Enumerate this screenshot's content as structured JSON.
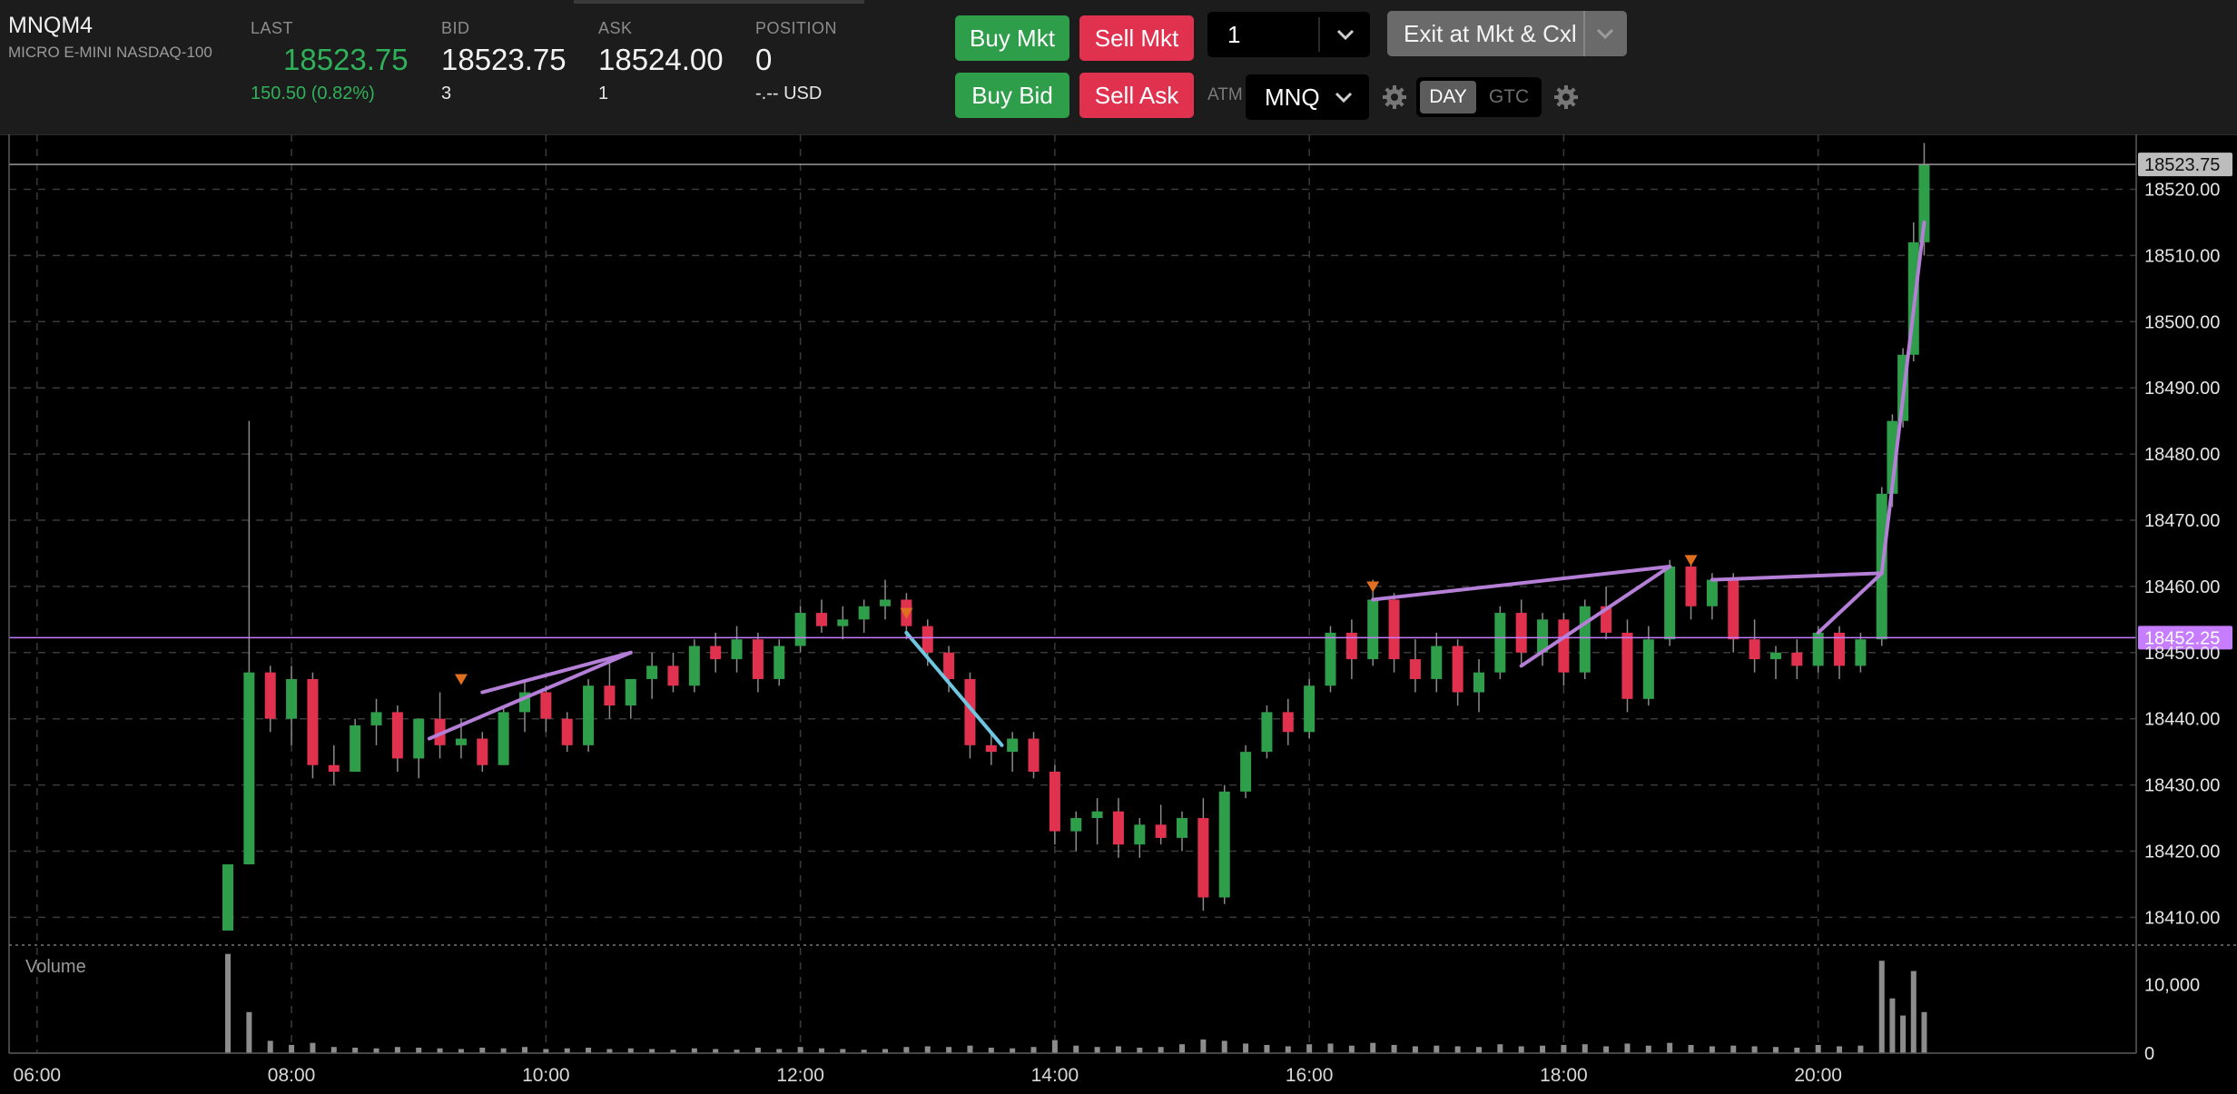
{
  "instrument": {
    "symbol": "MNQM4",
    "description": "MICRO E-MINI NASDAQ-100"
  },
  "quote": {
    "last_label": "LAST",
    "last": "18523.75",
    "change": "150.50 (0.82%)",
    "bid_label": "BID",
    "bid": "18523.75",
    "bid_size": "3",
    "ask_label": "ASK",
    "ask": "18524.00",
    "ask_size": "1",
    "position_label": "POSITION",
    "position": "0",
    "pnl": "-.-- USD"
  },
  "order_entry": {
    "buy_mkt": "Buy Mkt",
    "sell_mkt": "Sell Mkt",
    "buy_bid": "Buy Bid",
    "sell_ask": "Sell Ask",
    "quantity": "1",
    "exit_label": "Exit at Mkt & Cxl",
    "atm_label": "ATM",
    "atm_value": "MNQ",
    "tif_day": "DAY",
    "tif_gtc": "GTC",
    "tif_selected": "DAY"
  },
  "colors": {
    "up": "#2f9e4a",
    "down": "#e0324f",
    "last_price_line": "#9a9a9a",
    "reference_line": "#c77dff",
    "trend_lines": "#b57fd8",
    "trend_line_alt": "#6ec6e0",
    "marker_sell": "#e07020",
    "header_bg": "#1c1c1c"
  },
  "chart_data": {
    "type": "candlestick",
    "y_ticks": [
      "18520.00",
      "18510.00",
      "18500.00",
      "18490.00",
      "18480.00",
      "18470.00",
      "18460.00",
      "18450.00",
      "18440.00",
      "18430.00",
      "18420.00",
      "18410.00"
    ],
    "ylim": [
      18405.8,
      18528.3
    ],
    "x_ticks": [
      "06:00",
      "08:00",
      "10:00",
      "12:00",
      "14:00",
      "16:00",
      "18:00",
      "20:00"
    ],
    "x_range_hours": [
      5.78,
      22.5
    ],
    "last_price_tag": "18523.75",
    "reference_tag": "18452.25",
    "reference_price": 18452.25,
    "last_price": 18523.75,
    "volume_panel_label": "Volume",
    "volume_ticks": [
      "10,000",
      "0"
    ],
    "volume_max": 13000,
    "grid": "dashed",
    "candles": [
      {
        "t": "07:30",
        "o": 18408,
        "h": 18418,
        "l": 18408,
        "c": 18418,
        "v": 14500
      },
      {
        "t": "07:40",
        "o": 18418,
        "h": 18485,
        "l": 18418,
        "c": 18447,
        "v": 6000
      },
      {
        "t": "07:50",
        "o": 18447,
        "h": 18448,
        "l": 18438,
        "c": 18440,
        "v": 1800
      },
      {
        "t": "08:00",
        "o": 18440,
        "h": 18448,
        "l": 18436,
        "c": 18446,
        "v": 1200
      },
      {
        "t": "08:10",
        "o": 18446,
        "h": 18447,
        "l": 18431,
        "c": 18433,
        "v": 1500
      },
      {
        "t": "08:20",
        "o": 18433,
        "h": 18436,
        "l": 18430,
        "c": 18432,
        "v": 900
      },
      {
        "t": "08:30",
        "o": 18432,
        "h": 18440,
        "l": 18432,
        "c": 18439,
        "v": 800
      },
      {
        "t": "08:40",
        "o": 18439,
        "h": 18443,
        "l": 18436,
        "c": 18441,
        "v": 700
      },
      {
        "t": "08:50",
        "o": 18441,
        "h": 18442,
        "l": 18432,
        "c": 18434,
        "v": 900
      },
      {
        "t": "09:00",
        "o": 18434,
        "h": 18440,
        "l": 18431,
        "c": 18440,
        "v": 800
      },
      {
        "t": "09:10",
        "o": 18440,
        "h": 18444,
        "l": 18434,
        "c": 18436,
        "v": 700
      },
      {
        "t": "09:20",
        "o": 18436,
        "h": 18440,
        "l": 18434,
        "c": 18437,
        "v": 600
      },
      {
        "t": "09:30",
        "o": 18437,
        "h": 18438,
        "l": 18432,
        "c": 18433,
        "v": 800
      },
      {
        "t": "09:40",
        "o": 18433,
        "h": 18442,
        "l": 18433,
        "c": 18441,
        "v": 700
      },
      {
        "t": "09:50",
        "o": 18441,
        "h": 18446,
        "l": 18438,
        "c": 18444,
        "v": 900
      },
      {
        "t": "10:00",
        "o": 18444,
        "h": 18445,
        "l": 18438,
        "c": 18440,
        "v": 600
      },
      {
        "t": "10:10",
        "o": 18440,
        "h": 18441,
        "l": 18435,
        "c": 18436,
        "v": 700
      },
      {
        "t": "10:20",
        "o": 18436,
        "h": 18446,
        "l": 18435,
        "c": 18445,
        "v": 800
      },
      {
        "t": "10:30",
        "o": 18445,
        "h": 18449,
        "l": 18440,
        "c": 18442,
        "v": 600
      },
      {
        "t": "10:40",
        "o": 18442,
        "h": 18446,
        "l": 18440,
        "c": 18446,
        "v": 700
      },
      {
        "t": "10:50",
        "o": 18446,
        "h": 18450,
        "l": 18443,
        "c": 18448,
        "v": 600
      },
      {
        "t": "11:00",
        "o": 18448,
        "h": 18450,
        "l": 18444,
        "c": 18445,
        "v": 500
      },
      {
        "t": "11:10",
        "o": 18445,
        "h": 18452,
        "l": 18444,
        "c": 18451,
        "v": 700
      },
      {
        "t": "11:20",
        "o": 18451,
        "h": 18453,
        "l": 18447,
        "c": 18449,
        "v": 600
      },
      {
        "t": "11:30",
        "o": 18449,
        "h": 18454,
        "l": 18447,
        "c": 18452,
        "v": 500
      },
      {
        "t": "11:40",
        "o": 18452,
        "h": 18453,
        "l": 18444,
        "c": 18446,
        "v": 800
      },
      {
        "t": "11:50",
        "o": 18446,
        "h": 18452,
        "l": 18445,
        "c": 18451,
        "v": 600
      },
      {
        "t": "12:00",
        "o": 18451,
        "h": 18457,
        "l": 18450,
        "c": 18456,
        "v": 900
      },
      {
        "t": "12:10",
        "o": 18456,
        "h": 18458,
        "l": 18453,
        "c": 18454,
        "v": 700
      },
      {
        "t": "12:20",
        "o": 18454,
        "h": 18457,
        "l": 18452,
        "c": 18455,
        "v": 600
      },
      {
        "t": "12:30",
        "o": 18455,
        "h": 18458,
        "l": 18453,
        "c": 18457,
        "v": 500
      },
      {
        "t": "12:40",
        "o": 18457,
        "h": 18461,
        "l": 18455,
        "c": 18458,
        "v": 600
      },
      {
        "t": "12:50",
        "o": 18458,
        "h": 18459,
        "l": 18452,
        "c": 18454,
        "v": 900
      },
      {
        "t": "13:00",
        "o": 18454,
        "h": 18455,
        "l": 18448,
        "c": 18450,
        "v": 1000
      },
      {
        "t": "13:10",
        "o": 18450,
        "h": 18451,
        "l": 18444,
        "c": 18446,
        "v": 900
      },
      {
        "t": "13:20",
        "o": 18446,
        "h": 18447,
        "l": 18434,
        "c": 18436,
        "v": 1100
      },
      {
        "t": "13:30",
        "o": 18436,
        "h": 18438,
        "l": 18433,
        "c": 18435,
        "v": 800
      },
      {
        "t": "13:40",
        "o": 18435,
        "h": 18438,
        "l": 18432,
        "c": 18437,
        "v": 700
      },
      {
        "t": "13:50",
        "o": 18437,
        "h": 18438,
        "l": 18431,
        "c": 18432,
        "v": 900
      },
      {
        "t": "14:00",
        "o": 18432,
        "h": 18433,
        "l": 18421,
        "c": 18423,
        "v": 1900
      },
      {
        "t": "14:10",
        "o": 18423,
        "h": 18426,
        "l": 18420,
        "c": 18425,
        "v": 1100
      },
      {
        "t": "14:20",
        "o": 18425,
        "h": 18428,
        "l": 18421,
        "c": 18426,
        "v": 900
      },
      {
        "t": "14:30",
        "o": 18426,
        "h": 18428,
        "l": 18419,
        "c": 18421,
        "v": 1000
      },
      {
        "t": "14:40",
        "o": 18421,
        "h": 18425,
        "l": 18419,
        "c": 18424,
        "v": 800
      },
      {
        "t": "14:50",
        "o": 18424,
        "h": 18427,
        "l": 18421,
        "c": 18422,
        "v": 900
      },
      {
        "t": "15:00",
        "o": 18422,
        "h": 18426,
        "l": 18420,
        "c": 18425,
        "v": 1300
      },
      {
        "t": "15:10",
        "o": 18425,
        "h": 18428,
        "l": 18411,
        "c": 18413,
        "v": 2000
      },
      {
        "t": "15:20",
        "o": 18413,
        "h": 18430,
        "l": 18412,
        "c": 18429,
        "v": 1800
      },
      {
        "t": "15:30",
        "o": 18429,
        "h": 18436,
        "l": 18428,
        "c": 18435,
        "v": 1400
      },
      {
        "t": "15:40",
        "o": 18435,
        "h": 18442,
        "l": 18434,
        "c": 18441,
        "v": 1200
      },
      {
        "t": "15:50",
        "o": 18441,
        "h": 18443,
        "l": 18436,
        "c": 18438,
        "v": 1000
      },
      {
        "t": "16:00",
        "o": 18438,
        "h": 18446,
        "l": 18437,
        "c": 18445,
        "v": 1300
      },
      {
        "t": "16:10",
        "o": 18445,
        "h": 18454,
        "l": 18444,
        "c": 18453,
        "v": 1400
      },
      {
        "t": "16:20",
        "o": 18453,
        "h": 18455,
        "l": 18446,
        "c": 18449,
        "v": 1100
      },
      {
        "t": "16:30",
        "o": 18449,
        "h": 18461,
        "l": 18448,
        "c": 18458,
        "v": 1500
      },
      {
        "t": "16:40",
        "o": 18458,
        "h": 18459,
        "l": 18447,
        "c": 18449,
        "v": 1200
      },
      {
        "t": "16:50",
        "o": 18449,
        "h": 18452,
        "l": 18444,
        "c": 18446,
        "v": 1000
      },
      {
        "t": "17:00",
        "o": 18446,
        "h": 18453,
        "l": 18444,
        "c": 18451,
        "v": 1100
      },
      {
        "t": "17:10",
        "o": 18451,
        "h": 18452,
        "l": 18442,
        "c": 18444,
        "v": 1000
      },
      {
        "t": "17:20",
        "o": 18444,
        "h": 18449,
        "l": 18441,
        "c": 18447,
        "v": 900
      },
      {
        "t": "17:30",
        "o": 18447,
        "h": 18457,
        "l": 18446,
        "c": 18456,
        "v": 1300
      },
      {
        "t": "17:40",
        "o": 18456,
        "h": 18458,
        "l": 18448,
        "c": 18450,
        "v": 1000
      },
      {
        "t": "17:50",
        "o": 18450,
        "h": 18456,
        "l": 18448,
        "c": 18455,
        "v": 1100
      },
      {
        "t": "18:00",
        "o": 18455,
        "h": 18456,
        "l": 18445,
        "c": 18447,
        "v": 1200
      },
      {
        "t": "18:10",
        "o": 18447,
        "h": 18458,
        "l": 18446,
        "c": 18457,
        "v": 1300
      },
      {
        "t": "18:20",
        "o": 18457,
        "h": 18460,
        "l": 18452,
        "c": 18453,
        "v": 1000
      },
      {
        "t": "18:30",
        "o": 18453,
        "h": 18455,
        "l": 18441,
        "c": 18443,
        "v": 1400
      },
      {
        "t": "18:40",
        "o": 18443,
        "h": 18454,
        "l": 18442,
        "c": 18452,
        "v": 1100
      },
      {
        "t": "18:50",
        "o": 18452,
        "h": 18464,
        "l": 18451,
        "c": 18463,
        "v": 1500
      },
      {
        "t": "19:00",
        "o": 18463,
        "h": 18464,
        "l": 18455,
        "c": 18457,
        "v": 1200
      },
      {
        "t": "19:10",
        "o": 18457,
        "h": 18462,
        "l": 18455,
        "c": 18461,
        "v": 1000
      },
      {
        "t": "19:20",
        "o": 18461,
        "h": 18462,
        "l": 18450,
        "c": 18452,
        "v": 1100
      },
      {
        "t": "19:30",
        "o": 18452,
        "h": 18455,
        "l": 18447,
        "c": 18449,
        "v": 1000
      },
      {
        "t": "19:40",
        "o": 18449,
        "h": 18451,
        "l": 18446,
        "c": 18450,
        "v": 900
      },
      {
        "t": "19:50",
        "o": 18450,
        "h": 18452,
        "l": 18446,
        "c": 18448,
        "v": 800
      },
      {
        "t": "20:00",
        "o": 18448,
        "h": 18454,
        "l": 18447,
        "c": 18453,
        "v": 1200
      },
      {
        "t": "20:10",
        "o": 18453,
        "h": 18454,
        "l": 18446,
        "c": 18448,
        "v": 1000
      },
      {
        "t": "20:20",
        "o": 18448,
        "h": 18453,
        "l": 18447,
        "c": 18452,
        "v": 1100
      },
      {
        "t": "20:30",
        "o": 18452,
        "h": 18475,
        "l": 18451,
        "c": 18474,
        "v": 13500
      },
      {
        "t": "20:35",
        "o": 18474,
        "h": 18486,
        "l": 18472,
        "c": 18485,
        "v": 8000
      },
      {
        "t": "20:40",
        "o": 18485,
        "h": 18496,
        "l": 18484,
        "c": 18495,
        "v": 5500
      },
      {
        "t": "20:45",
        "o": 18495,
        "h": 18515,
        "l": 18494,
        "c": 18512,
        "v": 12000
      },
      {
        "t": "20:50",
        "o": 18512,
        "h": 18527,
        "l": 18510,
        "c": 18523.75,
        "v": 6000
      }
    ],
    "trend_lines": [
      {
        "from": [
          "09:05",
          18437
        ],
        "to": [
          "10:40",
          18450
        ]
      },
      {
        "from": [
          "09:30",
          18444
        ],
        "to": [
          "10:40",
          18450
        ]
      },
      {
        "from": [
          "12:50",
          18453
        ],
        "to": [
          "13:35",
          18436
        ]
      },
      {
        "from": [
          "16:30",
          18458
        ],
        "to": [
          "18:50",
          18463
        ]
      },
      {
        "from": [
          "17:40",
          18448
        ],
        "to": [
          "18:50",
          18463
        ]
      },
      {
        "from": [
          "19:10",
          18461
        ],
        "to": [
          "20:30",
          18462
        ]
      },
      {
        "from": [
          "20:00",
          18453
        ],
        "to": [
          "20:30",
          18462
        ]
      },
      {
        "from": [
          "20:30",
          18462
        ],
        "to": [
          "20:50",
          18515
        ]
      }
    ],
    "markers": [
      {
        "t": "09:20",
        "p": 18444,
        "kind": "sell"
      },
      {
        "t": "12:50",
        "p": 18454,
        "kind": "sell"
      },
      {
        "t": "16:30",
        "p": 18458,
        "kind": "sell"
      },
      {
        "t": "19:00",
        "p": 18462,
        "kind": "sell"
      }
    ]
  }
}
